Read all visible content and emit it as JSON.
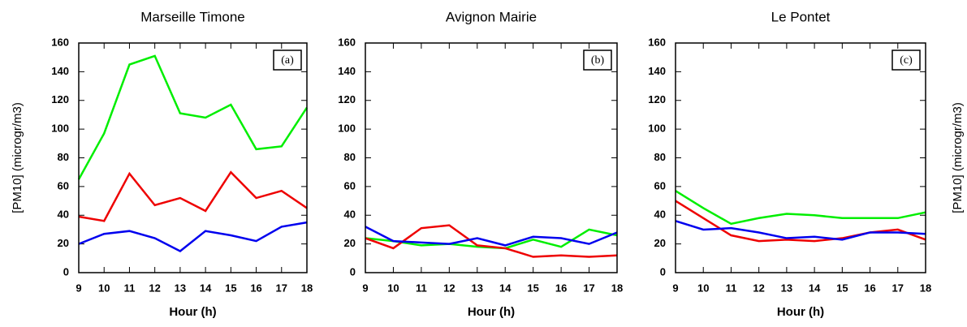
{
  "chart_data": [
    {
      "type": "line",
      "title": "Marseille Timone",
      "annotation": "(a)",
      "xlabel": "Hour (h)",
      "ylabel": "[PM10] (microgr/m3)",
      "ylabel_side": "left",
      "x": [
        9,
        10,
        11,
        12,
        13,
        14,
        15,
        16,
        17,
        18
      ],
      "xlim": [
        9,
        18
      ],
      "xticks": [
        9,
        10,
        11,
        12,
        13,
        14,
        15,
        16,
        17,
        18
      ],
      "ylim": [
        0,
        160
      ],
      "yticks": [
        0,
        20,
        40,
        60,
        80,
        100,
        120,
        140,
        160
      ],
      "series": [
        {
          "color": "#00ee00",
          "values": [
            65,
            97,
            145,
            151,
            111,
            108,
            117,
            86,
            88,
            115
          ]
        },
        {
          "color": "#ee0000",
          "values": [
            39,
            36,
            69,
            47,
            52,
            43,
            70,
            52,
            57,
            45
          ]
        },
        {
          "color": "#0000ee",
          "values": [
            20,
            27,
            29,
            24,
            15,
            29,
            26,
            22,
            32,
            35
          ]
        }
      ]
    },
    {
      "type": "line",
      "title": "Avignon Mairie",
      "annotation": "(b)",
      "xlabel": "Hour (h)",
      "x": [
        9,
        10,
        11,
        12,
        13,
        14,
        15,
        16,
        17,
        18
      ],
      "xlim": [
        9,
        18
      ],
      "xticks": [
        9,
        10,
        11,
        12,
        13,
        14,
        15,
        16,
        17,
        18
      ],
      "ylim": [
        0,
        160
      ],
      "yticks": [
        0,
        20,
        40,
        60,
        80,
        100,
        120,
        140,
        160
      ],
      "series": [
        {
          "color": "#00ee00",
          "values": [
            24,
            22,
            19,
            20,
            18,
            17,
            23,
            18,
            30,
            26
          ]
        },
        {
          "color": "#ee0000",
          "values": [
            24,
            17,
            31,
            33,
            19,
            17,
            11,
            12,
            11,
            12
          ]
        },
        {
          "color": "#0000ee",
          "values": [
            32,
            22,
            21,
            20,
            24,
            19,
            25,
            24,
            20,
            28
          ]
        }
      ]
    },
    {
      "type": "line",
      "title": "Le Pontet",
      "annotation": "(c)",
      "xlabel": "Hour (h)",
      "ylabel": "[PM10] (microgr/m3)",
      "ylabel_side": "right",
      "x": [
        9,
        10,
        11,
        12,
        13,
        14,
        15,
        16,
        17,
        18
      ],
      "xlim": [
        9,
        18
      ],
      "xticks": [
        9,
        10,
        11,
        12,
        13,
        14,
        15,
        16,
        17,
        18
      ],
      "ylim": [
        0,
        160
      ],
      "yticks": [
        0,
        20,
        40,
        60,
        80,
        100,
        120,
        140,
        160
      ],
      "series": [
        {
          "color": "#00ee00",
          "values": [
            57,
            45,
            34,
            38,
            41,
            40,
            38,
            38,
            38,
            42
          ]
        },
        {
          "color": "#ee0000",
          "values": [
            50,
            38,
            26,
            22,
            23,
            22,
            24,
            28,
            30,
            23
          ]
        },
        {
          "color": "#0000ee",
          "values": [
            36,
            30,
            31,
            28,
            24,
            25,
            23,
            28,
            28,
            27
          ]
        }
      ]
    }
  ]
}
